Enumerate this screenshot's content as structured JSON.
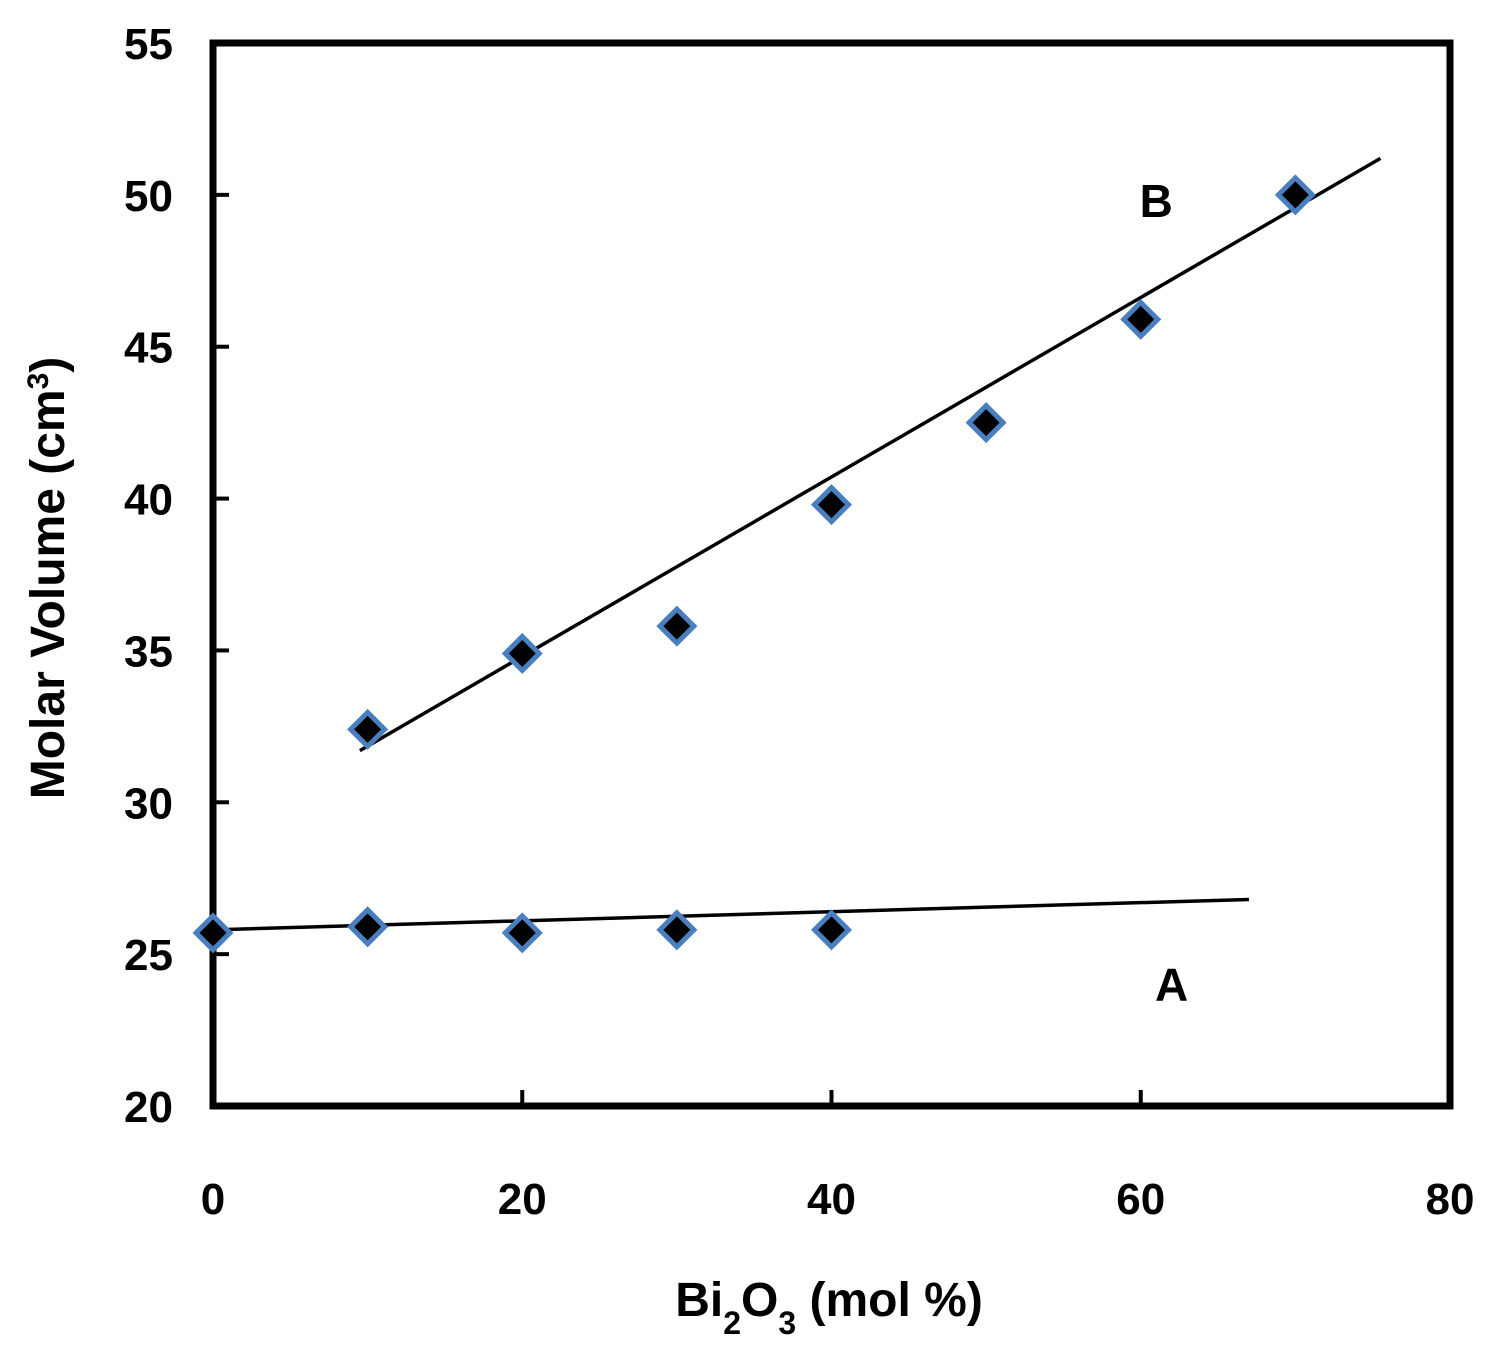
{
  "chart_data": {
    "type": "scatter",
    "title": "",
    "xlabel": {
      "main": "Bi",
      "sub1": "2",
      "mid": "O",
      "sub2": "3",
      "tail": " (mol %)"
    },
    "ylabel": {
      "main": "Molar Volume (cm",
      "sup": "3",
      "tail": ")"
    },
    "xlim": [
      0,
      80
    ],
    "ylim": [
      20,
      55
    ],
    "xticks": [
      "0",
      "20",
      "40",
      "60",
      "80"
    ],
    "yticks": [
      "20",
      "25",
      "30",
      "35",
      "40",
      "45",
      "50",
      "55"
    ],
    "xtick_values": [
      0,
      20,
      40,
      60,
      80
    ],
    "ytick_values": [
      20,
      25,
      30,
      35,
      40,
      45,
      50,
      55
    ],
    "grid": false,
    "marker_colors": {
      "fill": "#000000",
      "edge": "#4a7fbf"
    },
    "line_color": "#000000",
    "series": [
      {
        "name": "A",
        "label": "A",
        "x": [
          0,
          10,
          20,
          30,
          40
        ],
        "y": [
          25.7,
          25.9,
          25.7,
          25.8,
          25.8
        ],
        "trendline": {
          "x": [
            0,
            67
          ],
          "y": [
            25.8,
            26.8
          ]
        },
        "label_pos": {
          "x": 62,
          "y": 24
        }
      },
      {
        "name": "B",
        "label": "B",
        "x": [
          10,
          20,
          30,
          40,
          50,
          60,
          70
        ],
        "y": [
          32.4,
          34.9,
          35.8,
          39.8,
          42.5,
          45.9,
          50.0
        ],
        "trendline": {
          "x": [
            9.5,
            75.5
          ],
          "y": [
            31.7,
            51.2
          ]
        },
        "label_pos": {
          "x": 61,
          "y": 49.8
        }
      }
    ]
  }
}
